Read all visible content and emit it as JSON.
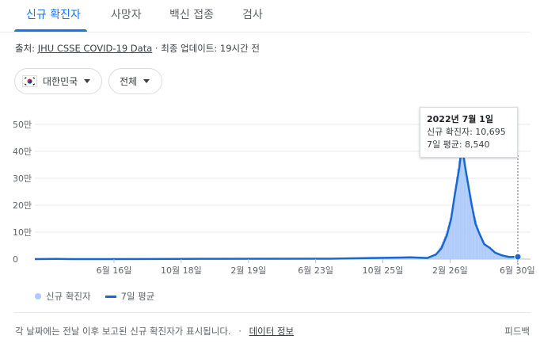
{
  "tabs": [
    {
      "label": "신규 확진자"
    },
    {
      "label": "사망자"
    },
    {
      "label": "백신 접종"
    },
    {
      "label": "검사"
    }
  ],
  "source": {
    "prefix": "출처:",
    "link": "JHU CSSE COVID-19 Data",
    "separator": "·",
    "updated": "최종 업데이트: 19시간 전"
  },
  "filters": {
    "country": "대한민국",
    "country_icon": "south-korea-flag-icon",
    "scope": "전체"
  },
  "tooltip": {
    "date": "2022년 7월 1일",
    "new_cases": "신규 확진자: 10,695",
    "avg": "7일 평균: 8,540"
  },
  "legend": {
    "bars_label": "신규 확진자",
    "line_label": "7일 평균"
  },
  "footer": {
    "text": "각 날짜에는 전날 이후 보고된 신규 확진자가 표시됩니다.",
    "separator": "·",
    "link": "데이터 정보",
    "feedback": "피드백"
  },
  "colors": {
    "accent": "#1a73e8",
    "line": "#1967d2",
    "bars": "#aecbfa"
  },
  "chart_data": {
    "type": "line",
    "x_start": "2020-01-22",
    "x_end": "2022-07-01",
    "xticks": [
      {
        "date": "2020-06-16",
        "label": "6월 16일"
      },
      {
        "date": "2020-10-18",
        "label": "10월 18일"
      },
      {
        "date": "2021-02-19",
        "label": "2월 19일"
      },
      {
        "date": "2021-06-23",
        "label": "6월 23일"
      },
      {
        "date": "2021-10-25",
        "label": "10월 25일"
      },
      {
        "date": "2022-02-26",
        "label": "2월 26일"
      },
      {
        "date": "2022-06-30",
        "label": "6월 30일"
      }
    ],
    "yticks": [
      {
        "value": 0,
        "label": "0"
      },
      {
        "value": 100000,
        "label": "10만"
      },
      {
        "value": 200000,
        "label": "20만"
      },
      {
        "value": 300000,
        "label": "30만"
      },
      {
        "value": 400000,
        "label": "40만"
      },
      {
        "value": 500000,
        "label": "50만"
      }
    ],
    "ylim": [
      0,
      500000
    ],
    "series": [
      {
        "name": "7일 평균",
        "points": [
          [
            "2020-01-22",
            0
          ],
          [
            "2020-03-01",
            600
          ],
          [
            "2020-04-01",
            100
          ],
          [
            "2020-08-28",
            300
          ],
          [
            "2020-12-25",
            1100
          ],
          [
            "2021-07-20",
            1500
          ],
          [
            "2021-12-15",
            6500
          ],
          [
            "2022-01-15",
            4200
          ],
          [
            "2022-01-31",
            17000
          ],
          [
            "2022-02-10",
            40000
          ],
          [
            "2022-02-20",
            88000
          ],
          [
            "2022-02-28",
            150000
          ],
          [
            "2022-03-06",
            230000
          ],
          [
            "2022-03-11",
            290000
          ],
          [
            "2022-03-15",
            340000
          ],
          [
            "2022-03-18",
            390000
          ],
          [
            "2022-03-20",
            404000
          ],
          [
            "2022-03-22",
            395000
          ],
          [
            "2022-03-26",
            340000
          ],
          [
            "2022-04-01",
            270000
          ],
          [
            "2022-04-07",
            200000
          ],
          [
            "2022-04-14",
            130000
          ],
          [
            "2022-04-21",
            95000
          ],
          [
            "2022-04-30",
            55000
          ],
          [
            "2022-05-10",
            42000
          ],
          [
            "2022-05-20",
            24000
          ],
          [
            "2022-06-01",
            14000
          ],
          [
            "2022-06-15",
            7500
          ],
          [
            "2022-07-01",
            8540
          ]
        ]
      },
      {
        "name": "신규 확진자",
        "points": [
          [
            "2020-01-22",
            0
          ],
          [
            "2020-03-01",
            800
          ],
          [
            "2020-04-01",
            100
          ],
          [
            "2020-08-28",
            400
          ],
          [
            "2020-12-25",
            1200
          ],
          [
            "2021-07-20",
            1800
          ],
          [
            "2021-12-15",
            7500
          ],
          [
            "2022-01-15",
            4000
          ],
          [
            "2022-01-31",
            20000
          ],
          [
            "2022-02-10",
            55000
          ],
          [
            "2022-02-20",
            105000
          ],
          [
            "2022-02-28",
            170000
          ],
          [
            "2022-03-06",
            250000
          ],
          [
            "2022-03-11",
            320000
          ],
          [
            "2022-03-15",
            380000
          ],
          [
            "2022-03-17",
            620000
          ],
          [
            "2022-03-19",
            410000
          ],
          [
            "2022-03-22",
            420000
          ],
          [
            "2022-03-26",
            350000
          ],
          [
            "2022-04-01",
            280000
          ],
          [
            "2022-04-07",
            210000
          ],
          [
            "2022-04-14",
            150000
          ],
          [
            "2022-04-21",
            100000
          ],
          [
            "2022-04-30",
            60000
          ],
          [
            "2022-05-10",
            45000
          ],
          [
            "2022-05-20",
            25000
          ],
          [
            "2022-06-01",
            15000
          ],
          [
            "2022-06-15",
            8000
          ],
          [
            "2022-07-01",
            10695
          ]
        ]
      }
    ],
    "highlight": {
      "date": "2022-07-01"
    },
    "grid": true,
    "legend_position": "bottom-left"
  }
}
